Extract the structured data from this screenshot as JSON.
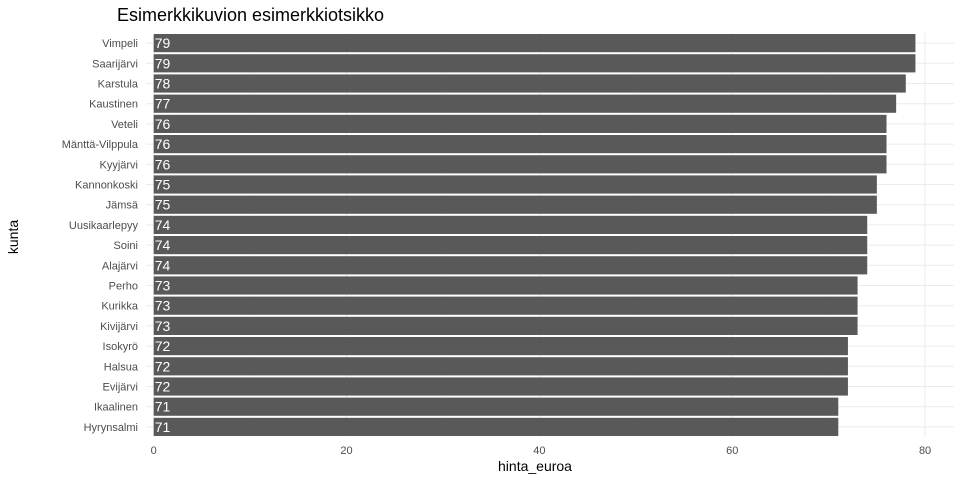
{
  "chart_data": {
    "type": "bar",
    "orientation": "horizontal",
    "title": "Esimerkkikuvion esimerkkiotsikko",
    "xlabel": "hinta_euroa",
    "ylabel": "kunta",
    "categories": [
      "Vimpeli",
      "Saarijärvi",
      "Karstula",
      "Kaustinen",
      "Veteli",
      "Mänttä-Vilppula",
      "Kyyjärvi",
      "Kannonkoski",
      "Jämsä",
      "Uusikaarlepyy",
      "Soini",
      "Alajärvi",
      "Perho",
      "Kurikka",
      "Kivijärvi",
      "Isokyrö",
      "Halsua",
      "Evijärvi",
      "Ikaalinen",
      "Hyrynsalmi"
    ],
    "values": [
      79,
      79,
      78,
      77,
      76,
      76,
      76,
      75,
      75,
      74,
      74,
      74,
      73,
      73,
      73,
      72,
      72,
      72,
      71,
      71
    ],
    "xlim": [
      -0.8,
      83
    ],
    "xticks": [
      0,
      20,
      40,
      60,
      80
    ],
    "grid": true,
    "legend": "none",
    "bar_color": "#595959",
    "label_color": "#ffffff"
  }
}
